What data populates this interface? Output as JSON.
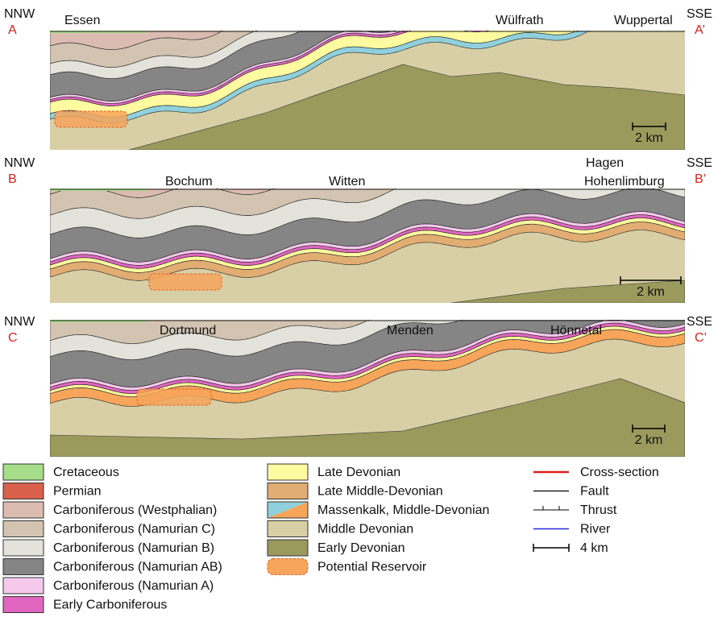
{
  "sections": [
    {
      "left_dir": "NNW",
      "left_label": "A",
      "right_dir": "SSE",
      "right_label": "A’",
      "places": [
        "Essen",
        "Wülfrath",
        "Wuppertal"
      ],
      "scale": "2 km"
    },
    {
      "left_dir": "NNW",
      "left_label": "B",
      "right_dir": "SSE",
      "right_label": "B’",
      "places": [
        "Bochum",
        "Witten",
        "Hagen",
        "Hohenlimburg"
      ],
      "scale": "2 km"
    },
    {
      "left_dir": "NNW",
      "left_label": "C",
      "right_dir": "SSE",
      "right_label": "C’",
      "places": [
        "Dortmund",
        "Menden",
        "Hönnetal"
      ],
      "scale": "2 km"
    }
  ],
  "legend": {
    "units_1": [
      "Cretaceous",
      "Permian",
      "Carboniferous (Westphalian)",
      "Carboniferous (Namurian C)",
      "Carboniferous (Namurian B)",
      "Carboniferous (Namurian AB)",
      "Carboniferous (Namurian A)",
      "Early Carboniferous"
    ],
    "units_2": [
      "Late Devonian",
      "Late Middle-Devonian",
      "Massenkalk, Middle-Devonian",
      "Middle Devonian",
      "Early Devonian",
      "Potential Reservoir"
    ],
    "symbols": [
      "Cross-section",
      "Fault",
      "Thrust",
      "River",
      "4 km"
    ]
  }
}
